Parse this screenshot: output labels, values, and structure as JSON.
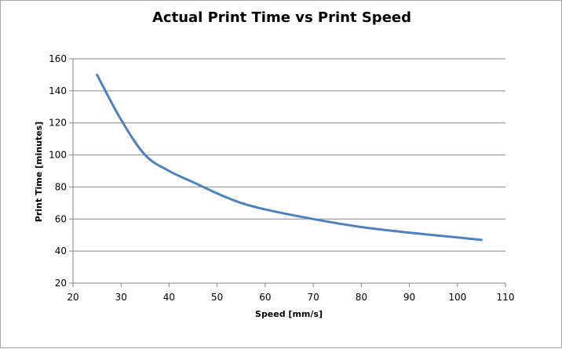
{
  "chart_data": {
    "type": "line",
    "title": "Actual Print Time vs Print Speed",
    "xlabel": "Speed [mm/s]",
    "ylabel": "Print Time [minutes]",
    "xlim": [
      20,
      110
    ],
    "ylim": [
      20,
      160
    ],
    "xticks": [
      20,
      30,
      40,
      50,
      60,
      70,
      80,
      90,
      100,
      110
    ],
    "yticks": [
      20,
      40,
      60,
      80,
      100,
      120,
      140,
      160
    ],
    "grid": "horizontal",
    "legend": "none",
    "series": [
      {
        "color": "#4f81bd",
        "x": [
          25,
          30,
          35,
          40,
          45,
          50,
          55,
          60,
          70,
          80,
          90,
          100,
          105
        ],
        "y": [
          150,
          122,
          100,
          90,
          83,
          76,
          70,
          66,
          60,
          55,
          51.5,
          48.5,
          47
        ]
      }
    ]
  }
}
